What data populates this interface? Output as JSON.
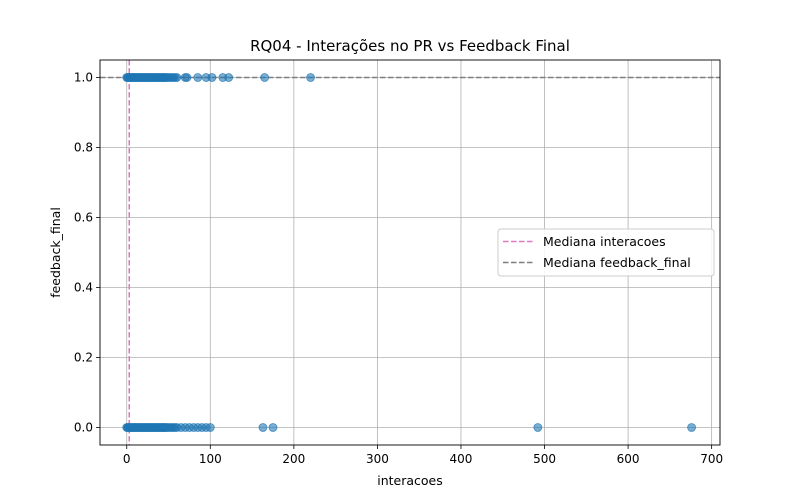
{
  "chart_data": {
    "type": "scatter",
    "title": "RQ04 - Interações no PR vs Feedback Final",
    "xlabel": "interacoes",
    "ylabel": "feedback_final",
    "xlim": [
      -32,
      710
    ],
    "ylim": [
      -0.05,
      1.05
    ],
    "xticks": [
      0,
      100,
      200,
      300,
      400,
      500,
      600,
      700
    ],
    "xtick_labels": [
      "0",
      "100",
      "200",
      "300",
      "400",
      "500",
      "600",
      "700"
    ],
    "yticks": [
      0.0,
      0.2,
      0.4,
      0.6,
      0.8,
      1.0
    ],
    "ytick_labels": [
      "0.0",
      "0.2",
      "0.4",
      "0.6",
      "0.8",
      "1.0"
    ],
    "grid": true,
    "legend_position": "center-right",
    "point_color": "#1f77b4",
    "series": [
      {
        "x": [
          0,
          1,
          2,
          3,
          4,
          5,
          6,
          7,
          8,
          9,
          10,
          11,
          12,
          13,
          14,
          15,
          16,
          17,
          18,
          19,
          20,
          21,
          22,
          23,
          24,
          25,
          26,
          27,
          28,
          29,
          30,
          31,
          32,
          33,
          34,
          35,
          36,
          37,
          38,
          39,
          40,
          41,
          42,
          43,
          44,
          45,
          46,
          47,
          48,
          50,
          52,
          54,
          56,
          58,
          60,
          70,
          72,
          85,
          95,
          102,
          115,
          122,
          165,
          220
        ],
        "y": [
          1,
          1,
          1,
          1,
          1,
          1,
          1,
          1,
          1,
          1,
          1,
          1,
          1,
          1,
          1,
          1,
          1,
          1,
          1,
          1,
          1,
          1,
          1,
          1,
          1,
          1,
          1,
          1,
          1,
          1,
          1,
          1,
          1,
          1,
          1,
          1,
          1,
          1,
          1,
          1,
          1,
          1,
          1,
          1,
          1,
          1,
          1,
          1,
          1,
          1,
          1,
          1,
          1,
          1,
          1,
          1,
          1,
          1,
          1,
          1,
          1,
          1,
          1,
          1
        ]
      },
      {
        "x": [
          0,
          1,
          2,
          3,
          4,
          5,
          6,
          7,
          8,
          9,
          10,
          11,
          12,
          13,
          14,
          15,
          16,
          17,
          18,
          19,
          20,
          21,
          22,
          23,
          24,
          25,
          26,
          27,
          28,
          29,
          30,
          31,
          32,
          33,
          34,
          35,
          36,
          37,
          38,
          39,
          40,
          41,
          42,
          43,
          44,
          45,
          46,
          47,
          48,
          50,
          52,
          54,
          56,
          58,
          60,
          65,
          70,
          75,
          80,
          85,
          90,
          95,
          100,
          163,
          175,
          492,
          676
        ],
        "y": [
          0,
          0,
          0,
          0,
          0,
          0,
          0,
          0,
          0,
          0,
          0,
          0,
          0,
          0,
          0,
          0,
          0,
          0,
          0,
          0,
          0,
          0,
          0,
          0,
          0,
          0,
          0,
          0,
          0,
          0,
          0,
          0,
          0,
          0,
          0,
          0,
          0,
          0,
          0,
          0,
          0,
          0,
          0,
          0,
          0,
          0,
          0,
          0,
          0,
          0,
          0,
          0,
          0,
          0,
          0,
          0,
          0,
          0,
          0,
          0,
          0,
          0,
          0,
          0,
          0,
          0,
          0
        ]
      }
    ],
    "reference_lines": [
      {
        "name": "Mediana interacoes",
        "orientation": "vertical",
        "value": 3,
        "color": "#e377c2"
      },
      {
        "name": "Mediana feedback_final",
        "orientation": "horizontal",
        "value": 1.0,
        "color": "#7f7f7f"
      }
    ]
  }
}
